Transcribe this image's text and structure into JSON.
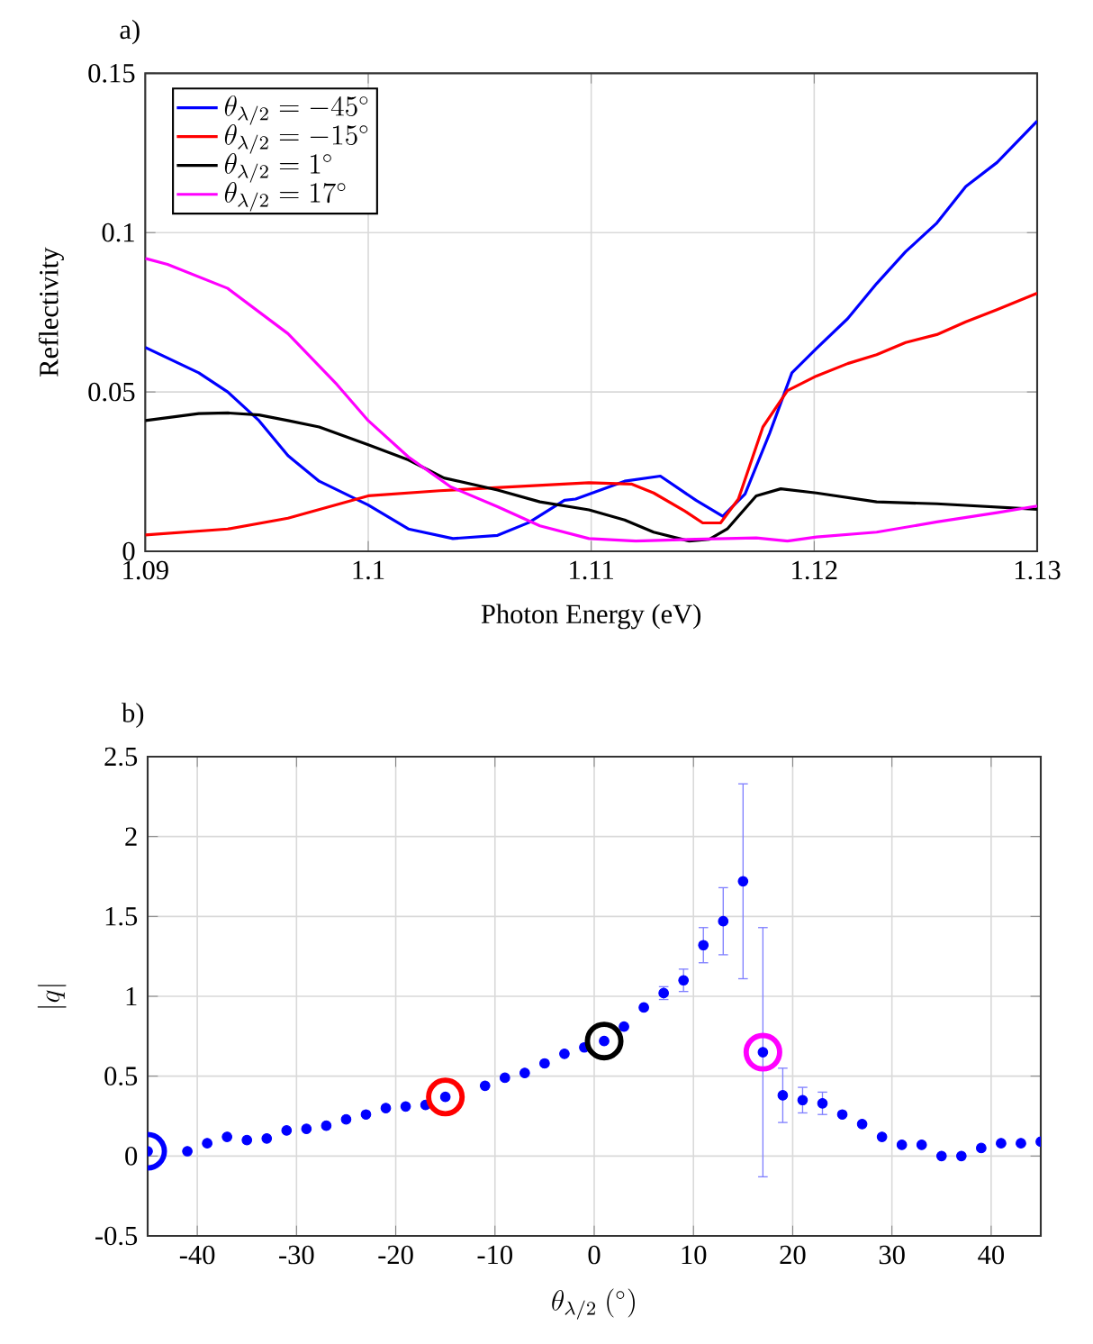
{
  "chart_data": [
    {
      "type": "line",
      "title": "a)",
      "xlabel": "Photon Energy (eV)",
      "ylabel": "Reflectivity",
      "xlim": [
        1.09,
        1.13
      ],
      "ylim": [
        0,
        0.15
      ],
      "xticks": [
        1.09,
        1.1,
        1.11,
        1.12,
        1.13
      ],
      "yticks": [
        0,
        0.05,
        0.1,
        0.15
      ],
      "grid": true,
      "legend": "top left",
      "line_style": "solid",
      "series": [
        {
          "name": "\\theta_{\\lambda/2} = -45^\\circ",
          "color": "#0000ff",
          "x": [
            1.09,
            1.0924,
            1.0937,
            1.0951,
            1.0964,
            1.0978,
            1.1,
            1.1018,
            1.1038,
            1.1058,
            1.1072,
            1.1088,
            1.1093,
            1.1115,
            1.1131,
            1.1147,
            1.1159,
            1.1169,
            1.118,
            1.119,
            1.1201,
            1.1215,
            1.1228,
            1.1241,
            1.1255,
            1.1268,
            1.1282,
            1.13
          ],
          "values": [
            0.064,
            0.056,
            0.05,
            0.041,
            0.03,
            0.022,
            0.0145,
            0.007,
            0.004,
            0.005,
            0.009,
            0.016,
            0.0164,
            0.022,
            0.0236,
            0.016,
            0.011,
            0.018,
            0.037,
            0.056,
            0.0636,
            0.073,
            0.084,
            0.094,
            0.103,
            0.1145,
            0.122,
            0.135
          ]
        },
        {
          "name": "\\theta_{\\lambda/2} = -15^\\circ",
          "color": "#ff0000",
          "x": [
            1.09,
            1.0937,
            1.0964,
            1.1,
            1.1032,
            1.1099,
            1.1118,
            1.1128,
            1.1142,
            1.115,
            1.1158,
            1.1166,
            1.1177,
            1.1188,
            1.1201,
            1.1215,
            1.1228,
            1.1241,
            1.1255,
            1.1268,
            1.1282,
            1.13
          ],
          "values": [
            0.0051,
            0.007,
            0.0104,
            0.0174,
            0.019,
            0.0215,
            0.0211,
            0.0183,
            0.0126,
            0.0089,
            0.0089,
            0.0164,
            0.039,
            0.0504,
            0.055,
            0.0589,
            0.0617,
            0.0655,
            0.068,
            0.072,
            0.0758,
            0.081
          ]
        },
        {
          "name": "\\theta_{\\lambda/2} = 1^\\circ",
          "color": "#000000",
          "x": [
            1.09,
            1.0924,
            1.0937,
            1.0951,
            1.0964,
            1.0978,
            1.1,
            1.1018,
            1.1034,
            1.1058,
            1.1077,
            1.1099,
            1.1115,
            1.1128,
            1.1144,
            1.1153,
            1.1161,
            1.1174,
            1.1185,
            1.1201,
            1.1228,
            1.1255,
            1.13
          ],
          "values": [
            0.041,
            0.0432,
            0.0434,
            0.0428,
            0.041,
            0.039,
            0.0334,
            0.0287,
            0.023,
            0.0192,
            0.0155,
            0.013,
            0.0098,
            0.006,
            0.0032,
            0.0038,
            0.007,
            0.0174,
            0.0196,
            0.0183,
            0.0155,
            0.0149,
            0.0132
          ]
        },
        {
          "name": "\\theta_{\\lambda/2} = 17^\\circ",
          "color": "#ff00ff",
          "x": [
            1.09,
            1.091,
            1.0937,
            1.0964,
            1.0986,
            1.1,
            1.1018,
            1.1037,
            1.1058,
            1.1077,
            1.1099,
            1.112,
            1.1147,
            1.1174,
            1.1188,
            1.1201,
            1.1228,
            1.1255,
            1.1282,
            1.13
          ],
          "values": [
            0.0919,
            0.09,
            0.0825,
            0.0683,
            0.0523,
            0.041,
            0.0296,
            0.0202,
            0.014,
            0.008,
            0.004,
            0.0032,
            0.0038,
            0.0042,
            0.0032,
            0.0045,
            0.006,
            0.0092,
            0.0121,
            0.0142
          ]
        }
      ]
    },
    {
      "type": "scatter",
      "title": "b)",
      "xlabel": "\\theta_{\\lambda/2}\\ (^\\circ)",
      "ylabel": "|q|",
      "xlim": [
        -45,
        45
      ],
      "ylim": [
        -0.5,
        2.5
      ],
      "xticks": [
        -40,
        -30,
        -20,
        -10,
        0,
        10,
        20,
        30,
        40
      ],
      "yticks": [
        -0.5,
        0,
        0.5,
        1,
        1.5,
        2,
        2.5
      ],
      "grid": true,
      "marker": "circle",
      "series": [
        {
          "color": "#0000ff",
          "x": [
            -45,
            -41,
            -39,
            -37,
            -35,
            -33,
            -31,
            -29,
            -27,
            -25,
            -23,
            -21,
            -19,
            -17,
            -15,
            -11,
            -9,
            -7,
            -5,
            -3,
            -1,
            1,
            3,
            5,
            7,
            9,
            11,
            13,
            15,
            17,
            19,
            21,
            23,
            25,
            27,
            29,
            31,
            33,
            35,
            37,
            39,
            41,
            43,
            45
          ],
          "values": [
            0.03,
            0.03,
            0.08,
            0.12,
            0.1,
            0.11,
            0.16,
            0.17,
            0.19,
            0.23,
            0.26,
            0.3,
            0.31,
            0.32,
            0.37,
            0.44,
            0.49,
            0.52,
            0.58,
            0.64,
            0.68,
            0.72,
            0.81,
            0.93,
            1.02,
            1.1,
            1.32,
            1.47,
            1.72,
            0.65,
            0.38,
            0.35,
            0.33,
            0.26,
            0.2,
            0.12,
            0.07,
            0.07,
            0.0,
            0.0,
            0.05,
            0.08,
            0.08,
            0.09
          ],
          "errors": [
            null,
            null,
            null,
            null,
            null,
            null,
            null,
            null,
            null,
            null,
            null,
            null,
            null,
            null,
            null,
            null,
            null,
            null,
            null,
            null,
            null,
            null,
            null,
            null,
            0.04,
            0.07,
            0.11,
            0.21,
            0.61,
            0.78,
            0.17,
            0.08,
            0.07,
            null,
            null,
            null,
            null,
            null,
            null,
            null,
            null,
            null,
            null,
            null
          ]
        },
        {
          "color": "#0000ff",
          "x": [
            -45
          ],
          "values": [
            0.03
          ]
        },
        {
          "color": "#ff0000",
          "x": [
            -15
          ],
          "values": [
            0.37
          ]
        },
        {
          "color": "#000000",
          "x": [
            1
          ],
          "values": [
            0.72
          ]
        },
        {
          "color": "#ff00ff",
          "x": [
            17
          ],
          "values": [
            0.65
          ]
        }
      ]
    }
  ]
}
